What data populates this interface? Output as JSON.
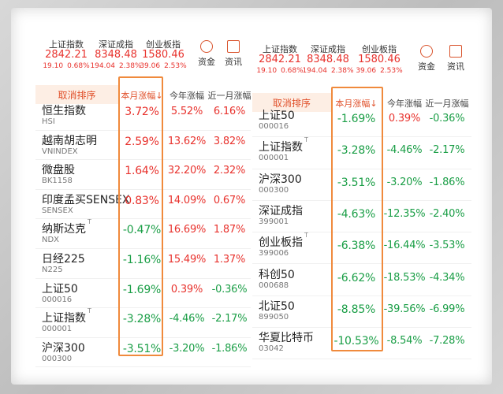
{
  "panels": [
    {
      "indices": [
        {
          "name": "上证指数",
          "value": "2842.21",
          "change": "19.10",
          "pct": "0.68%"
        },
        {
          "name": "深证成指",
          "value": "8348.48",
          "change": "194.04",
          "pct": "2.38%"
        },
        {
          "name": "创业板指",
          "value": "1580.46",
          "change": "39.06",
          "pct": "2.53%"
        }
      ],
      "tools": [
        "资金",
        "资讯"
      ],
      "sort": {
        "reset": "取消排序",
        "columns": [
          "本月涨幅↓",
          "今年涨幅",
          "近一月涨幅"
        ]
      },
      "rows": [
        {
          "name": "恒生指数",
          "code": "HSI",
          "values": [
            "3.72%",
            "5.52%",
            "6.16%"
          ]
        },
        {
          "name": "越南胡志明",
          "code": "VNINDEX",
          "values": [
            "2.59%",
            "13.62%",
            "3.82%"
          ]
        },
        {
          "name": "微盘股",
          "code": "BK1158",
          "values": [
            "1.64%",
            "32.20%",
            "2.32%"
          ]
        },
        {
          "name": "印度孟买SENSEX",
          "code": "SENSEX",
          "values": [
            "0.83%",
            "14.09%",
            "0.67%"
          ]
        },
        {
          "name": "纳斯达克",
          "tag": "T",
          "code": "NDX",
          "values": [
            "-0.47%",
            "16.69%",
            "1.87%"
          ]
        },
        {
          "name": "日经225",
          "code": "N225",
          "values": [
            "-1.16%",
            "15.49%",
            "1.37%"
          ]
        },
        {
          "name": "上证50",
          "code": "000016",
          "values": [
            "-1.69%",
            "0.39%",
            "-0.36%"
          ]
        },
        {
          "name": "上证指数",
          "tag": "T",
          "code": "000001",
          "values": [
            "-3.28%",
            "-4.46%",
            "-2.17%"
          ]
        },
        {
          "name": "沪深300",
          "code": "000300",
          "values": [
            "-3.51%",
            "-3.20%",
            "-1.86%"
          ]
        }
      ]
    },
    {
      "indices": [
        {
          "name": "上证指数",
          "value": "2842.21",
          "change": "19.10",
          "pct": "0.68%"
        },
        {
          "name": "深证成指",
          "value": "8348.48",
          "change": "194.04",
          "pct": "2.38%"
        },
        {
          "name": "创业板指",
          "value": "1580.46",
          "change": "39.06",
          "pct": "2.53%"
        }
      ],
      "tools": [
        "资金",
        "资讯"
      ],
      "sort": {
        "reset": "取消排序",
        "columns": [
          "本月涨幅↓",
          "今年涨幅",
          "近一月涨幅"
        ]
      },
      "rows": [
        {
          "name": "上证50",
          "code": "000016",
          "values": [
            "-1.69%",
            "0.39%",
            "-0.36%"
          ]
        },
        {
          "name": "上证指数",
          "tag": "T",
          "code": "000001",
          "values": [
            "-3.28%",
            "-4.46%",
            "-2.17%"
          ]
        },
        {
          "name": "沪深300",
          "code": "000300",
          "values": [
            "-3.51%",
            "-3.20%",
            "-1.86%"
          ]
        },
        {
          "name": "深证成指",
          "code": "399001",
          "values": [
            "-4.63%",
            "-12.35%",
            "-2.40%"
          ]
        },
        {
          "name": "创业板指",
          "tag": "T",
          "code": "399006",
          "values": [
            "-6.38%",
            "-16.44%",
            "-3.53%"
          ]
        },
        {
          "name": "科创50",
          "code": "000688",
          "values": [
            "-6.62%",
            "-18.53%",
            "-4.34%"
          ]
        },
        {
          "name": "北证50",
          "code": "899050",
          "values": [
            "-8.85%",
            "-39.56%",
            "-6.99%"
          ]
        },
        {
          "name": "华夏比特币",
          "code": "03042",
          "values": [
            "-10.53%",
            "-8.54%",
            "-7.28%"
          ]
        }
      ]
    }
  ]
}
